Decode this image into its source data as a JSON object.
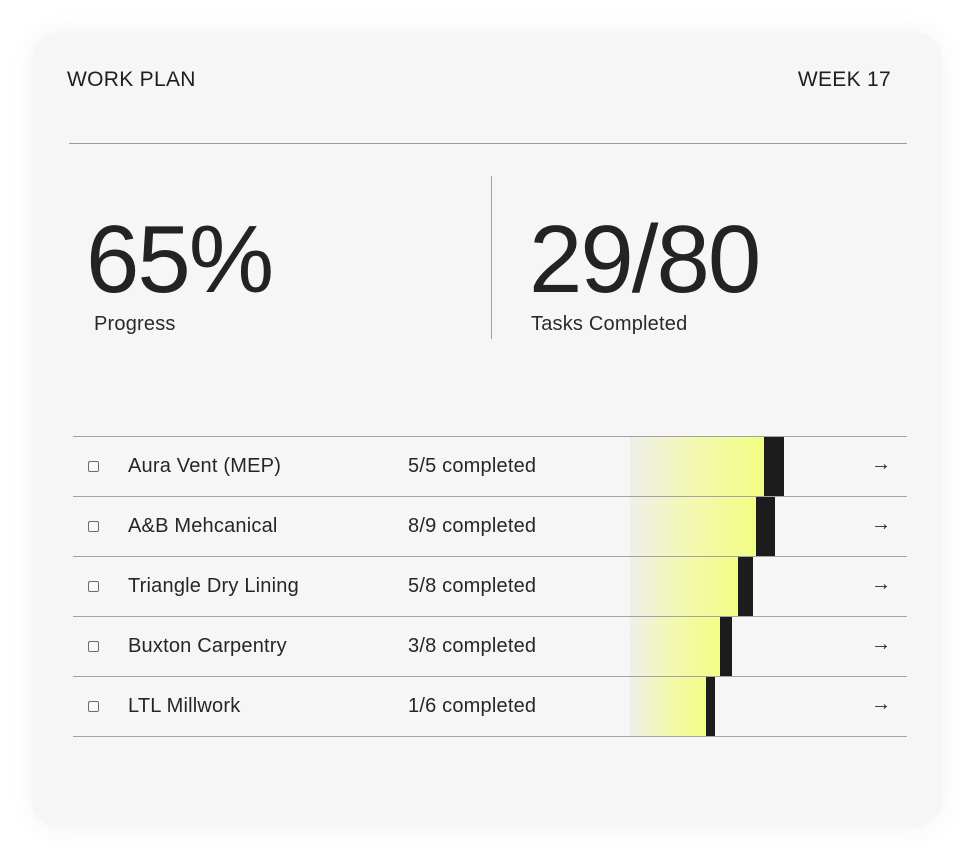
{
  "header": {
    "title": "WORK PLAN",
    "week": "WEEK 17"
  },
  "stats": {
    "progress_value": "65%",
    "progress_label": "Progress",
    "tasks_value": "29/80",
    "tasks_label": "Tasks Completed"
  },
  "icons": {
    "row_arrow": "arrow-right-icon",
    "row_checkbox": "checkbox"
  },
  "colors": {
    "bar_highlight": "#f2fd84",
    "bar_cap": "#1c1c1c"
  },
  "rows": [
    {
      "name": "Aura Vent (MEP)",
      "status": "5/5 completed",
      "done": 5,
      "total": 5,
      "arrow": "→"
    },
    {
      "name": "A&B Mehcanical",
      "status": "8/9 completed",
      "done": 8,
      "total": 9,
      "arrow": "→"
    },
    {
      "name": "Triangle Dry Lining",
      "status": "5/8 completed",
      "done": 5,
      "total": 8,
      "arrow": "→"
    },
    {
      "name": "Buxton Carpentry",
      "status": "3/8 completed",
      "done": 3,
      "total": 8,
      "arrow": "→"
    },
    {
      "name": "LTL Millwork",
      "status": "1/6 completed",
      "done": 1,
      "total": 6,
      "arrow": "→"
    }
  ]
}
